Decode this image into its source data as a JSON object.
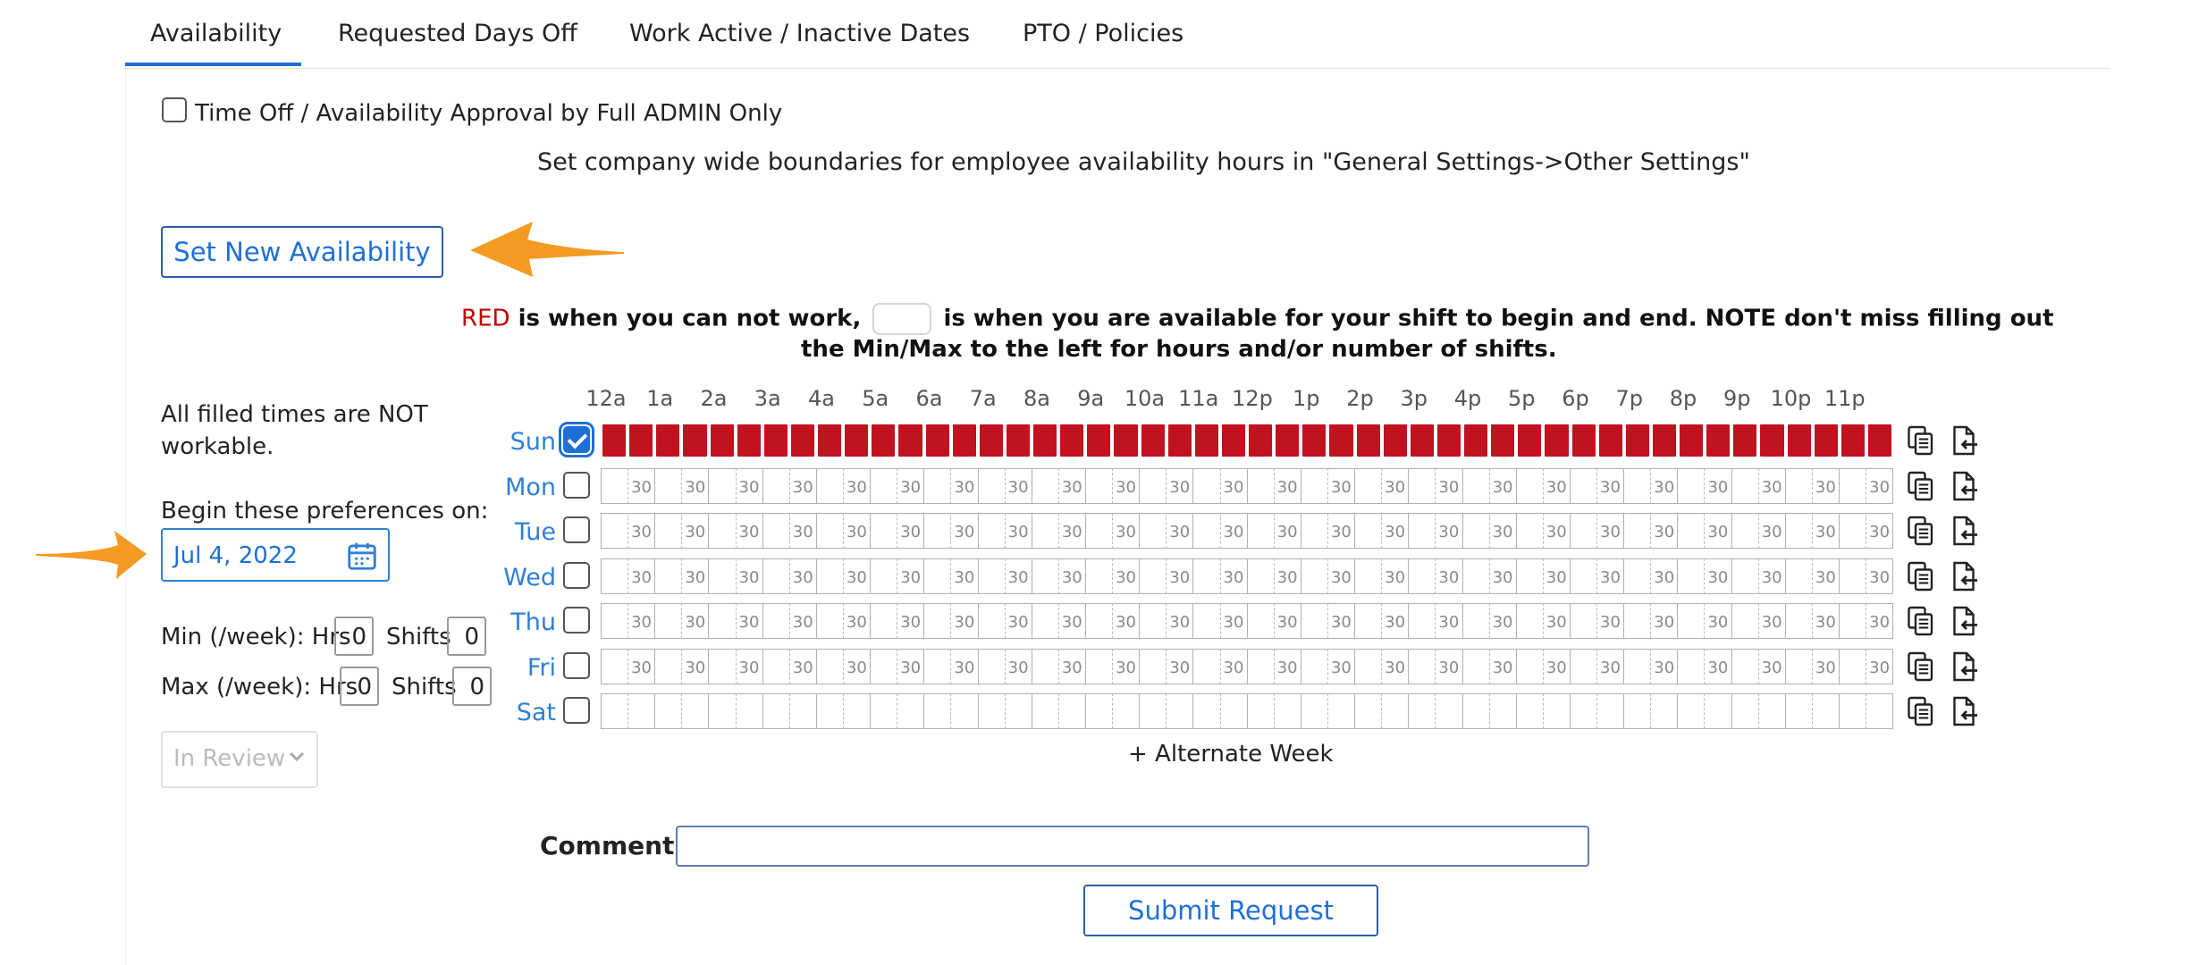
{
  "tabs": [
    {
      "label": "Availability",
      "active": true
    },
    {
      "label": "Requested Days Off"
    },
    {
      "label": "Work Active / Inactive Dates"
    },
    {
      "label": "PTO / Policies"
    }
  ],
  "approval_checkbox": {
    "label": "Time Off / Availability Approval by Full ADMIN Only",
    "checked": false
  },
  "boundary_note": "Set company wide boundaries for employee availability hours in \"General Settings->Other Settings\"",
  "set_new_button": "Set New Availability",
  "legend": {
    "red_word": "RED",
    "part1": " is when you can not work, ",
    "part2": " is when you are available for your shift to begin and end. NOTE don't miss filling out",
    "line2": "the Min/Max to the left for hours and/or number of shifts."
  },
  "left_panel": {
    "filled_note_line1": "All filled times are NOT",
    "filled_note_line2": "workable.",
    "begin_label": "Begin these preferences on:",
    "begin_date": "Jul 4, 2022",
    "min_label": "Min (/week): Hrs",
    "max_label": "Max (/week): Hrs",
    "shifts_label": "Shifts",
    "min_hrs": "0",
    "min_shifts": "0",
    "max_hrs": "0",
    "max_shifts": "0",
    "status_select": "In Review"
  },
  "grid": {
    "hours": [
      "12a",
      "1a",
      "2a",
      "3a",
      "4a",
      "5a",
      "6a",
      "7a",
      "8a",
      "9a",
      "10a",
      "11a",
      "12p",
      "1p",
      "2p",
      "3p",
      "4p",
      "5p",
      "6p",
      "7p",
      "8p",
      "9p",
      "10p",
      "11p"
    ],
    "half_label": "30",
    "days": [
      {
        "label": "Sun",
        "checked": true,
        "state": "unavailable"
      },
      {
        "label": "Mon",
        "checked": false,
        "state": "available"
      },
      {
        "label": "Tue",
        "checked": false,
        "state": "available"
      },
      {
        "label": "Wed",
        "checked": false,
        "state": "available"
      },
      {
        "label": "Thu",
        "checked": false,
        "state": "available"
      },
      {
        "label": "Fri",
        "checked": false,
        "state": "available"
      },
      {
        "label": "Sat",
        "checked": false,
        "state": "empty"
      }
    ],
    "alternate_week": "+ Alternate Week"
  },
  "comment": {
    "label": "Comment:",
    "value": ""
  },
  "submit_button": "Submit Request",
  "colors": {
    "accent": "#1f6fd6",
    "red": "#c1121f",
    "arrow": "#f59a23"
  }
}
